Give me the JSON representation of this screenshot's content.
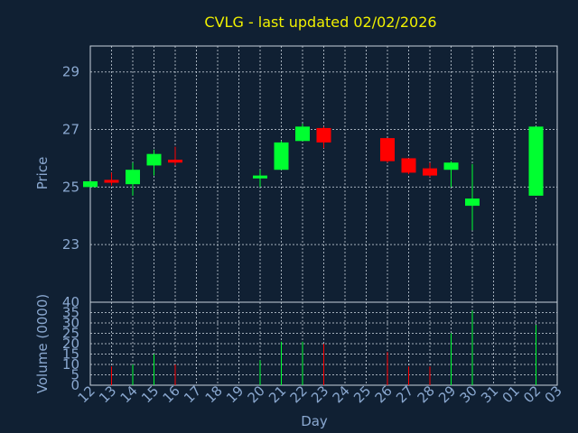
{
  "chart_data": {
    "type": "candlestick",
    "title": "CVLG - last updated 02/02/2026",
    "xlabel": "Day",
    "price_ylabel": "Price",
    "volume_ylabel": "Volume (0000)",
    "x_ticks": [
      "12",
      "13",
      "14",
      "15",
      "16",
      "17",
      "18",
      "19",
      "20",
      "21",
      "22",
      "23",
      "24",
      "25",
      "26",
      "27",
      "28",
      "29",
      "30",
      "31",
      "01",
      "02",
      "03"
    ],
    "price_yticks": [
      23,
      25,
      27,
      29
    ],
    "price_ylim": [
      21.0,
      29.9
    ],
    "volume_yticks": [
      0,
      5,
      10,
      15,
      20,
      25,
      30,
      35,
      40
    ],
    "volume_ylim": [
      0,
      40
    ],
    "grid": true,
    "up_color": "#00ff30",
    "down_color": "#ff0000",
    "candles": [
      {
        "day": "12",
        "open": 25.0,
        "high": 25.2,
        "low": 25.0,
        "close": 25.2,
        "volume": 0
      },
      {
        "day": "13",
        "open": 25.25,
        "high": 25.5,
        "low": 25.05,
        "close": 25.15,
        "volume": 9
      },
      {
        "day": "14",
        "open": 25.1,
        "high": 25.85,
        "low": 24.7,
        "close": 25.6,
        "volume": 10
      },
      {
        "day": "15",
        "open": 25.75,
        "high": 26.3,
        "low": 25.4,
        "close": 26.15,
        "volume": 15
      },
      {
        "day": "16",
        "open": 25.95,
        "high": 26.4,
        "low": 25.75,
        "close": 25.85,
        "volume": 10
      },
      {
        "day": "20",
        "open": 25.3,
        "high": 25.6,
        "low": 25.0,
        "close": 25.4,
        "volume": 12
      },
      {
        "day": "21",
        "open": 25.6,
        "high": 26.6,
        "low": 25.6,
        "close": 26.55,
        "volume": 21
      },
      {
        "day": "22",
        "open": 26.6,
        "high": 27.2,
        "low": 26.6,
        "close": 27.1,
        "volume": 21
      },
      {
        "day": "23",
        "open": 27.05,
        "high": 27.1,
        "low": 26.35,
        "close": 26.55,
        "volume": 20
      },
      {
        "day": "26",
        "open": 26.7,
        "high": 26.7,
        "low": 25.85,
        "close": 25.9,
        "volume": 16
      },
      {
        "day": "27",
        "open": 26.0,
        "high": 26.0,
        "low": 25.45,
        "close": 25.5,
        "volume": 9
      },
      {
        "day": "28",
        "open": 25.65,
        "high": 25.85,
        "low": 25.35,
        "close": 25.4,
        "volume": 9
      },
      {
        "day": "29",
        "open": 25.6,
        "high": 25.9,
        "low": 25.0,
        "close": 25.85,
        "volume": 25
      },
      {
        "day": "30",
        "open": 24.35,
        "high": 25.8,
        "low": 23.5,
        "close": 24.6,
        "volume": 36
      },
      {
        "day": "02",
        "open": 24.7,
        "high": 27.1,
        "low": 24.7,
        "close": 27.1,
        "volume": 29
      }
    ]
  }
}
